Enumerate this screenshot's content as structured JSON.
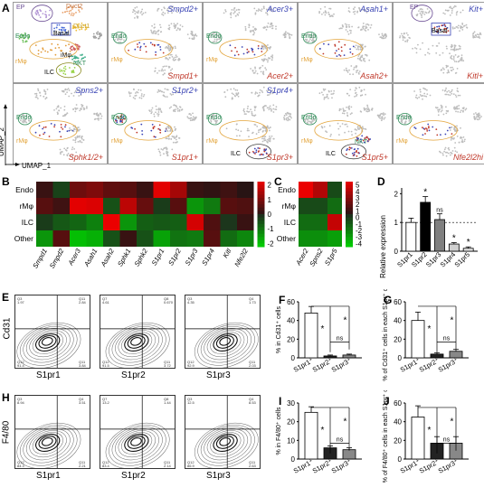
{
  "panelA": {
    "letter": "A",
    "axis_y": "UMAP_2",
    "axis_x": "UMAP_1",
    "tiles": [
      {
        "top": "",
        "bottom": "",
        "clusters": [
          "EP",
          "Duct2",
          "Duct1",
          "Basal",
          "Endo",
          "rMφ",
          "iMφ",
          "NKT",
          "ILC"
        ]
      },
      {
        "top": "Smpd2+",
        "bottom": "Smpd1+"
      },
      {
        "top": "Acer3+",
        "bottom": "Acer2+"
      },
      {
        "top": "Asah1+",
        "bottom": "Asah2+"
      },
      {
        "top": "Kit+",
        "bottom": "Kitl+",
        "clusters": [
          "EP",
          "Basal"
        ]
      },
      {
        "top": "Spns2+",
        "bottom": "Sphk1/2+"
      },
      {
        "top": "S1pr2+",
        "bottom": "S1pr1+"
      },
      {
        "top": "S1pr4+",
        "bottom": "S1pr3+"
      },
      {
        "top": "",
        "bottom": "S1pr5+"
      },
      {
        "top": "",
        "bottom": "Nfe2l2hi"
      }
    ],
    "tile_cluster_labels": {
      "endo": "Endo",
      "rmph": "rMφ",
      "ilc": "ILC",
      "nkt": "NKT",
      "basal": "Basal"
    }
  },
  "panelB": {
    "letter": "B",
    "rows": [
      "Endo",
      "rMφ",
      "ILC",
      "Other"
    ],
    "genes": [
      "Smpd1",
      "Smpd2",
      "Acer3",
      "Asah1",
      "Asah2",
      "Sphk1",
      "Sphk2",
      "S1pr1",
      "S1pr2",
      "S1pr3",
      "S1pr4",
      "Kitl",
      "Nfe2l2"
    ],
    "values": [
      [
        0.2,
        -0.4,
        0.9,
        1.1,
        0.7,
        0.6,
        0.2,
        2.4,
        1.6,
        0.2,
        0.1,
        0.3,
        0.0
      ],
      [
        0.6,
        0.3,
        2.4,
        2.3,
        -0.6,
        1.9,
        0.8,
        -0.3,
        0.6,
        -1.6,
        -1.2,
        0.6,
        0.5
      ],
      [
        -0.3,
        -0.7,
        -0.9,
        -1.3,
        2.6,
        -1.6,
        -0.8,
        -0.7,
        -0.8,
        2.2,
        0.5,
        -0.2,
        0.2
      ],
      [
        -1.6,
        0.6,
        -2.2,
        -2.0,
        -0.6,
        0.2,
        -0.6,
        -1.8,
        -1.1,
        -1.2,
        0.6,
        -1.0,
        -1.4
      ]
    ],
    "legend_ticks": [
      "2",
      "1",
      "0",
      "-1",
      "-2"
    ]
  },
  "panelC": {
    "letter": "C",
    "rows": [
      "Endo",
      "rMφ",
      "ILC",
      "Other"
    ],
    "genes": [
      "Acer2",
      "Spns2",
      "S1pr5"
    ],
    "values": [
      [
        5,
        3.5,
        -1
      ],
      [
        -1,
        -1,
        -2
      ],
      [
        -2,
        -2,
        4
      ],
      [
        -3,
        -3,
        -3.5
      ]
    ],
    "legend_ticks": [
      "5",
      "4",
      "3",
      "2",
      "1",
      "0",
      "-1",
      "-2",
      "-3",
      "-4"
    ]
  },
  "panelD": {
    "letter": "D",
    "ylabel": "Relative expression",
    "type": "bar",
    "categories": [
      "S1pr1",
      "S1pr2",
      "S1pr3",
      "S1pr4",
      "S1pr5"
    ],
    "values": [
      1.0,
      1.7,
      1.1,
      0.25,
      0.1
    ],
    "errors": [
      0.15,
      0.2,
      0.2,
      0.05,
      0.05
    ],
    "fills": [
      "#ffffff",
      "#000000",
      "#808080",
      "#d0d0d0",
      "#e8e8e8"
    ],
    "sig": [
      "",
      "*",
      "ns",
      "*",
      "*"
    ],
    "yticks": [
      "0",
      "1",
      "2"
    ],
    "ylim": [
      0,
      2.2
    ]
  },
  "chart_data": [
    {
      "type": "bar",
      "title": "",
      "ylabel": "Relative expression",
      "categories": [
        "S1pr1",
        "S1pr2",
        "S1pr3",
        "S1pr4",
        "S1pr5"
      ],
      "values": [
        1.0,
        1.7,
        1.1,
        0.25,
        0.1
      ],
      "ylim": [
        0,
        2.2
      ]
    },
    {
      "type": "bar",
      "ylabel": "% in Cd31+ cells",
      "categories": [
        "S1pr1+",
        "S1pr2+",
        "S1pr3+"
      ],
      "values": [
        48,
        2,
        3
      ],
      "ylim": [
        0,
        60
      ]
    },
    {
      "type": "bar",
      "ylabel": "% of Cd31+ cells in each S1pr+ cells",
      "categories": [
        "S1pr1+",
        "S1pr2+",
        "S1pr3+"
      ],
      "values": [
        40,
        4,
        7
      ],
      "ylim": [
        0,
        60
      ]
    },
    {
      "type": "bar",
      "ylabel": "% in F4/80+ cells",
      "categories": [
        "S1pr1+",
        "S1pr2+",
        "S1pr3+"
      ],
      "values": [
        25,
        6,
        5
      ],
      "ylim": [
        0,
        30
      ]
    },
    {
      "type": "bar",
      "ylabel": "% of F4/80+ cells in each S1pr+ cells",
      "categories": [
        "S1pr1+",
        "S1pr2+",
        "S1pr3+"
      ],
      "values": [
        45,
        17,
        17
      ],
      "ylim": [
        0,
        60
      ]
    }
  ],
  "panelE": {
    "letter": "E",
    "ylabel": "Cd31",
    "plots": [
      {
        "x": "S1pr1",
        "q": [
          "Q3\n1.97",
          "Q11\n2.84",
          "Q12\n91.4",
          "Q11\n3.84"
        ]
      },
      {
        "x": "S1pr2",
        "q": [
          "Q7\n4.61",
          "Q8\n0.670",
          "Q12\n91.5",
          "Q11\n3.72"
        ]
      },
      {
        "x": "S1pr3",
        "q": [
          "Q3\n4.35",
          "Q4\n1.73",
          "Q12\n92.9",
          "Q11\n2.03"
        ]
      }
    ]
  },
  "panelH": {
    "letter": "H",
    "ylabel": "F4/80",
    "plots": [
      {
        "x": "S1pr1",
        "q": [
          "Q3\n8.94",
          "Q4\n3.51",
          "Q12\n84.3",
          "Q11\n2.21"
        ]
      },
      {
        "x": "S1pr2",
        "q": [
          "Q7\n13.2",
          "Q8\n1.44",
          "Q12\n83.4",
          "Q11\n2.14"
        ]
      },
      {
        "x": "S1pr3",
        "q": [
          "Q3\n12.5",
          "Q4\n8.53",
          "Q12\n86.9",
          "Q11\n2.63"
        ]
      }
    ]
  },
  "panelF": {
    "letter": "F",
    "ylabel": "% in Cd31⁺ cells",
    "categories": [
      "S1pr1⁺",
      "S1pr2⁺",
      "S1pr3⁺"
    ],
    "values": [
      48,
      2,
      3
    ],
    "errors": [
      7,
      1,
      1
    ],
    "yticks": [
      "0",
      "20",
      "40",
      "60"
    ],
    "ymax": 60,
    "sig": [
      "*",
      "*",
      "ns"
    ]
  },
  "panelG": {
    "letter": "G",
    "ylabel": "% of Cd31⁺ cells in each S1pr⁺ cells",
    "categories": [
      "S1pr1⁺",
      "S1pr2⁺",
      "S1pr3⁺"
    ],
    "values": [
      40,
      4,
      7
    ],
    "errors": [
      9,
      1.5,
      2
    ],
    "yticks": [
      "0",
      "20",
      "40",
      "60"
    ],
    "ymax": 60,
    "sig": [
      "*",
      "*",
      "ns"
    ]
  },
  "panelI": {
    "letter": "I",
    "ylabel": "% in F4/80⁺ cells",
    "categories": [
      "S1pr1⁺",
      "S1pr2⁺",
      "S1pr3⁺"
    ],
    "values": [
      25,
      6,
      5
    ],
    "errors": [
      3,
      1,
      1
    ],
    "yticks": [
      "0",
      "10",
      "20",
      "30"
    ],
    "ymax": 30,
    "sig": [
      "*",
      "*",
      "ns"
    ]
  },
  "panelJ": {
    "letter": "J",
    "ylabel": "% of F4/80⁺ cells in each S1pr⁺ cells",
    "categories": [
      "S1pr1⁺",
      "S1pr2⁺",
      "S1pr3⁺"
    ],
    "values": [
      45,
      17,
      17
    ],
    "errors": [
      12,
      7,
      7
    ],
    "yticks": [
      "0",
      "20",
      "40",
      "60"
    ],
    "ymax": 60,
    "sig": [
      "*",
      "*",
      "ns"
    ]
  },
  "colors": {
    "red": "#c0392b",
    "blue": "#3b45b5",
    "orange": "#e3a43a",
    "green": "#2e8b57",
    "purple": "#6a4c93",
    "grey": "#bdbdbd"
  }
}
